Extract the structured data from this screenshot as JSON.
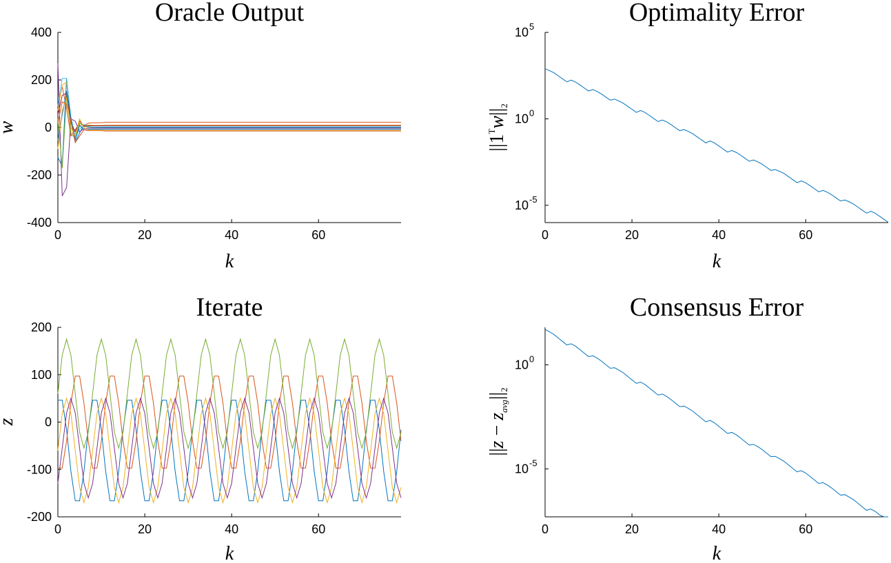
{
  "chart_data": [
    {
      "type": "line",
      "title": "Oracle Output",
      "xlabel": "k",
      "ylabel": "w",
      "xlim": [
        0,
        79
      ],
      "ylim": [
        -400,
        400
      ],
      "xticks": [
        0,
        20,
        40,
        60
      ],
      "yticks": [
        -400,
        -200,
        0,
        200,
        400
      ],
      "ytick_labels": [
        "-400",
        "-200",
        "0",
        "200",
        "400"
      ],
      "grid": false,
      "colors": [
        "#0072BD",
        "#D95319",
        "#EDB120",
        "#7E2F8E",
        "#77AC30",
        "#4DBEEE",
        "#A2142F"
      ],
      "series": [
        {
          "values": [
            -140,
            -180,
            230,
            30,
            -70,
            -25,
            10,
            5,
            -2,
            0,
            0
          ]
        },
        {
          "values": [
            100,
            190,
            90,
            -40,
            -10,
            20,
            8,
            20,
            22,
            22,
            22
          ]
        },
        {
          "values": [
            80,
            200,
            210,
            -20,
            -30,
            10,
            5,
            12,
            10,
            10,
            10
          ]
        },
        {
          "values": [
            300,
            -320,
            -280,
            40,
            30,
            -20,
            -5,
            -3,
            -3,
            -3,
            -3
          ]
        },
        {
          "values": [
            40,
            -190,
            150,
            -30,
            -50,
            20,
            5,
            2,
            2,
            2,
            2
          ]
        },
        {
          "values": [
            100,
            230,
            230,
            50,
            -40,
            -10,
            15,
            5,
            3,
            3,
            3
          ]
        },
        {
          "values": [
            60,
            150,
            160,
            20,
            -20,
            30,
            6,
            8,
            8,
            8,
            8
          ]
        },
        {
          "values": [
            -60,
            60,
            170,
            40,
            -60,
            10,
            -12,
            -8,
            -8,
            -8,
            -8
          ]
        },
        {
          "values": [
            20,
            120,
            110,
            30,
            -70,
            -40,
            -10,
            -15,
            -15,
            -15,
            -15
          ]
        },
        {
          "values": [
            -100,
            80,
            140,
            0,
            -40,
            40,
            0,
            -12,
            -12,
            -12,
            -12
          ]
        }
      ]
    },
    {
      "type": "line",
      "title": "Optimality Error",
      "xlabel": "k",
      "ylabel_text": "||1",
      "ylabel_sup": "T",
      "ylabel_var": "w",
      "ylabel_tail": "||",
      "ylabel_sub": "2",
      "xlim": [
        0,
        79
      ],
      "yscale": "log",
      "ylim_exp": [
        -6,
        5
      ],
      "xticks": [
        0,
        20,
        40,
        60
      ],
      "yticks_exp": [
        -5,
        0,
        5
      ],
      "ytick_base": "10",
      "ytick_exps": [
        "-5",
        "0",
        "5"
      ],
      "grid": false,
      "colors": [
        "#0072BD"
      ],
      "series": [
        {
          "start_exp": 2.9,
          "rate": 0.11,
          "ripple": 0.22,
          "period": 5.3
        }
      ]
    },
    {
      "type": "line",
      "title": "Iterate",
      "xlabel": "k",
      "ylabel": "z",
      "xlim": [
        0,
        79
      ],
      "ylim": [
        -200,
        200
      ],
      "xticks": [
        0,
        20,
        40,
        60
      ],
      "yticks": [
        -200,
        -100,
        0,
        100,
        200
      ],
      "ytick_labels": [
        "-200",
        "-100",
        "0",
        "100",
        "200"
      ],
      "grid": false,
      "colors": [
        "#0072BD",
        "#D95319",
        "#EDB120",
        "#7E2F8E",
        "#77AC30"
      ],
      "series": [
        {
          "amp": 115,
          "offset": -60,
          "period": 8,
          "phase": 0.5
        },
        {
          "amp": 105,
          "offset": 0,
          "period": 8,
          "phase": 4.5
        },
        {
          "amp": 110,
          "offset": -60,
          "period": 8,
          "phase": 2.0
        },
        {
          "amp": 105,
          "offset": -55,
          "period": 8,
          "phase": 3.0
        },
        {
          "amp": 115,
          "offset": 60,
          "period": 8,
          "phase": 2.0
        }
      ]
    },
    {
      "type": "line",
      "title": "Consensus Error",
      "xlabel": "k",
      "ylabel_text": "||",
      "ylabel_var": "z",
      "ylabel_minus": " − ",
      "ylabel_var2": "z",
      "ylabel_var2_sub": "avg",
      "ylabel_tail": "||",
      "ylabel_sub": "2",
      "xlim": [
        0,
        79
      ],
      "yscale": "log",
      "ylim_exp": [
        -7.3,
        1.8
      ],
      "xticks": [
        0,
        20,
        40,
        60
      ],
      "yticks_exp": [
        -5,
        0
      ],
      "ytick_base": "10",
      "ytick_exps": [
        "-5",
        "0"
      ],
      "grid": false,
      "colors": [
        "#0072BD"
      ],
      "series": [
        {
          "start_exp": 1.7,
          "rate": 0.115,
          "ripple": 0.18,
          "period": 5.3
        }
      ]
    }
  ]
}
